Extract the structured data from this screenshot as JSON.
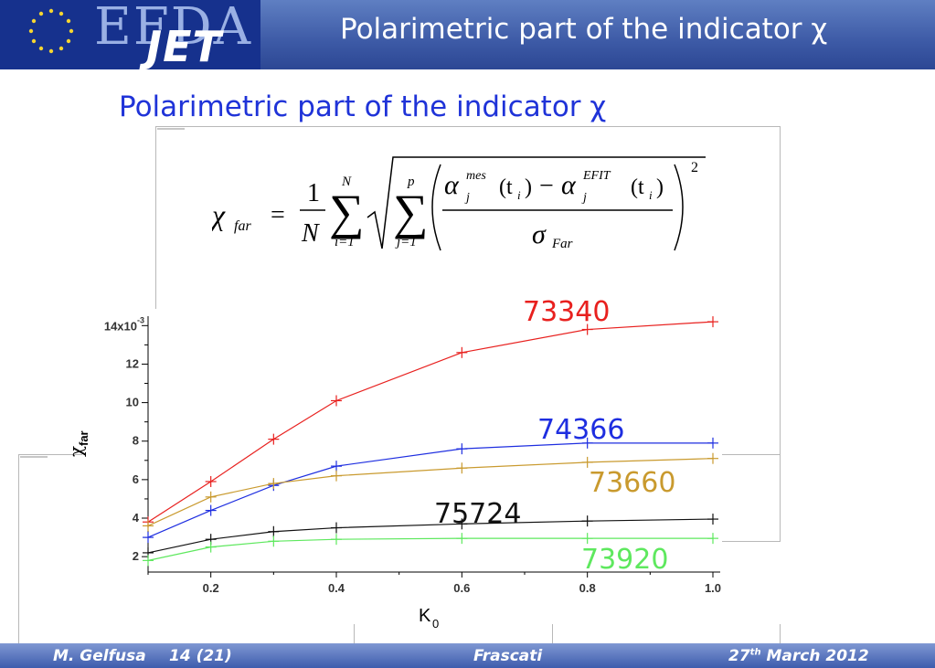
{
  "header": {
    "logo_efda": "EFDA",
    "logo_jet": "JET",
    "title": "Polarimetric part of the indicator χ"
  },
  "slide_title": "Polarimetric part of the indicator χ",
  "formula": {
    "lhs": "χ",
    "lhs_sub": "far",
    "equals": "=",
    "num": "1",
    "den": "N",
    "sum1_top": "N",
    "sum1_bot": "i=1",
    "sum2_top": "p",
    "sum2_bot": "j=1",
    "alpha": "α",
    "mes": "mes",
    "efit": "EFIT",
    "j": "j",
    "ti": "(t",
    "i": "i",
    "close": ")",
    "minus": "−",
    "sigma": "σ",
    "sigma_sub": "Far",
    "power": "2"
  },
  "footer": {
    "author": "M. Gelfusa",
    "page": "14 (21)",
    "location": "Frascati",
    "date_day": "27",
    "date_sup": "th",
    "date_rest": "March 2012"
  },
  "colors": {
    "header_bg": "#3d5aa6",
    "logo_bg": "#16318d",
    "title_blue": "#1f33d8",
    "red": "#e8201e",
    "blue": "#1e2ee0",
    "orange": "#c99a2e",
    "black": "#111111",
    "green": "#5ee85e"
  },
  "chart_data": {
    "type": "line",
    "title": "",
    "xlabel": "K",
    "xlabel_sub": "0",
    "ylabel": "χ",
    "ylabel_sub": "far",
    "y_scale_label": "14x10",
    "y_scale_exp": "-3",
    "xlim": [
      0.1,
      1.0
    ],
    "ylim": [
      1.2,
      14.3
    ],
    "x_ticks": [
      0.2,
      0.4,
      0.6,
      0.8,
      1.0
    ],
    "x_tick_labels": [
      "0.2",
      "0.4",
      "0.6",
      "0.8",
      "1.0"
    ],
    "y_ticks": [
      2,
      4,
      6,
      8,
      10,
      12
    ],
    "y_tick_labels": [
      "2",
      "4",
      "6",
      "8",
      "10",
      "12"
    ],
    "grid": false,
    "x": [
      0.1,
      0.2,
      0.3,
      0.4,
      0.6,
      0.8,
      1.0
    ],
    "series": [
      {
        "name": "73340",
        "color": "#e8201e",
        "values": [
          3.8,
          5.9,
          8.1,
          10.1,
          12.6,
          13.8,
          14.2
        ]
      },
      {
        "name": "74366",
        "color": "#1e2ee0",
        "values": [
          3.0,
          4.4,
          5.7,
          6.7,
          7.6,
          7.9,
          7.9
        ]
      },
      {
        "name": "73660",
        "color": "#c99a2e",
        "values": [
          3.6,
          5.1,
          5.8,
          6.2,
          6.6,
          6.9,
          7.1
        ]
      },
      {
        "name": "75724",
        "color": "#111111",
        "values": [
          2.2,
          2.9,
          3.3,
          3.5,
          3.7,
          3.85,
          3.95
        ]
      },
      {
        "name": "73920",
        "color": "#5ee85e",
        "values": [
          1.8,
          2.5,
          2.8,
          2.9,
          2.95,
          2.95,
          2.95
        ]
      }
    ],
    "annotations": [
      {
        "text": "73340",
        "color": "#e8201e"
      },
      {
        "text": "74366",
        "color": "#1e2ee0"
      },
      {
        "text": "73660",
        "color": "#c99a2e"
      },
      {
        "text": "75724",
        "color": "#111111"
      },
      {
        "text": "73920",
        "color": "#5ee85e"
      }
    ]
  }
}
